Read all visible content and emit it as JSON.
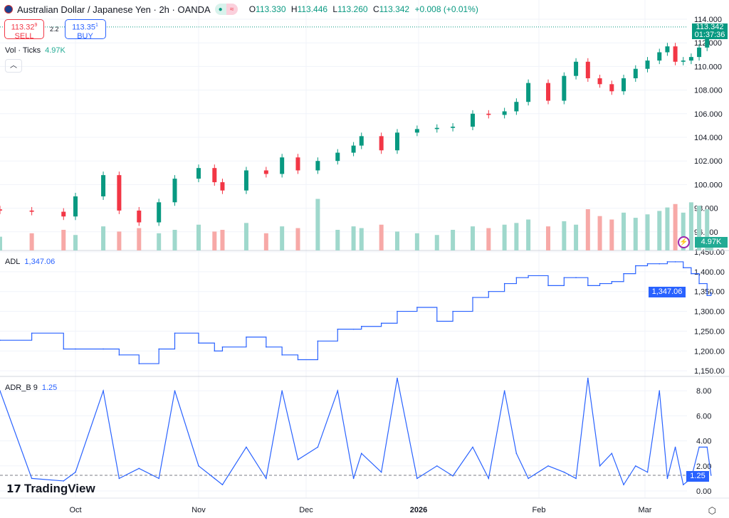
{
  "header": {
    "symbol": "Australian Dollar / Japanese Yen · 2h · OANDA",
    "open_label": "O",
    "open": "113.330",
    "high_label": "H",
    "high": "113.446",
    "low_label": "L",
    "low": "113.260",
    "close_label": "C",
    "close": "113.342",
    "change": "+0.008 (+0.01%)",
    "market_status_icon": "dot-icon",
    "delay_icon": "wave-icon"
  },
  "trade": {
    "sell_price": "113.32",
    "sell_sup": "9",
    "sell_label": "SELL",
    "spread": "2.2",
    "buy_price": "113.35",
    "buy_sup": "1",
    "buy_label": "BUY"
  },
  "volume_legend": {
    "label": "Vol · Ticks",
    "value": "4.97K"
  },
  "adl_legend": {
    "label": "ADL",
    "value": "1,347.06"
  },
  "adr_legend": {
    "label": "ADR_B 9",
    "value": "1.25"
  },
  "price_tag": {
    "price": "113.342",
    "countdown": "01:37:36"
  },
  "volume_tag": "4.97K",
  "adl_tag": "1,347.06",
  "adr_tag": "1.25",
  "brand": "TradingView",
  "colors": {
    "up": "#089981",
    "down": "#f23645",
    "line": "#2962ff"
  },
  "chart_data": [
    {
      "type": "candlestick",
      "title": "Australian Dollar / Japanese Yen · 2h · OANDA",
      "ylim": [
        95,
        115
      ],
      "yticks": [
        "114.000",
        "112.000",
        "110.000",
        "108.000",
        "106.000",
        "104.000",
        "102.000",
        "100.000",
        "98.000",
        "96.000"
      ],
      "x": [
        "2025-09-12",
        "2025-09-20",
        "2025-09-28",
        "2025-10-01",
        "2025-10-08",
        "2025-10-12",
        "2025-10-17",
        "2025-10-22",
        "2025-10-26",
        "2025-11-01",
        "2025-11-05",
        "2025-11-07",
        "2025-11-13",
        "2025-11-18",
        "2025-11-22",
        "2025-11-26",
        "2025-12-01",
        "2025-12-06",
        "2025-12-10",
        "2025-12-12",
        "2025-12-17",
        "2025-12-21",
        "2025-12-26",
        "2025-12-31",
        "2026-01-04",
        "2026-01-09",
        "2026-01-13",
        "2026-01-17",
        "2026-01-20",
        "2026-01-23",
        "2026-01-28",
        "2026-02-01",
        "2026-02-04",
        "2026-02-07",
        "2026-02-10",
        "2026-02-13",
        "2026-02-16",
        "2026-02-19",
        "2026-02-22",
        "2026-02-25",
        "2026-02-27",
        "2026-03-01",
        "2026-03-03",
        "2026-03-05",
        "2026-03-07",
        "2026-03-09",
        "2026-03-10"
      ],
      "close": [
        97.8,
        97.7,
        97.3,
        99.0,
        100.8,
        97.8,
        96.8,
        98.5,
        100.5,
        101.4,
        100.2,
        99.5,
        101.2,
        100.9,
        102.3,
        101.2,
        102.0,
        102.7,
        103.3,
        104.1,
        102.9,
        104.4,
        104.7,
        104.8,
        104.9,
        106.0,
        105.9,
        106.2,
        107.0,
        108.6,
        107.1,
        109.2,
        110.4,
        109.0,
        108.5,
        107.9,
        109.0,
        109.8,
        110.5,
        111.2,
        111.7,
        110.4,
        110.5,
        110.8,
        111.6,
        112.8,
        113.342
      ],
      "volume_k": [
        8,
        10,
        12,
        9,
        14,
        11,
        13,
        10,
        12,
        15,
        11,
        12,
        16,
        10,
        14,
        13,
        30,
        12,
        14,
        13,
        15,
        11,
        10,
        9,
        12,
        14,
        13,
        15,
        16,
        18,
        14,
        17,
        15,
        24,
        20,
        18,
        22,
        19,
        21,
        23,
        25,
        27,
        22,
        28,
        26,
        24,
        4.97
      ],
      "xticks": [
        "Oct",
        "Nov",
        "Dec",
        "2026",
        "Feb",
        "Mar"
      ]
    },
    {
      "type": "line",
      "series": [
        {
          "name": "ADL",
          "values": [
            1227,
            1245,
            1205,
            1205,
            1205,
            1190,
            1168,
            1205,
            1245,
            1220,
            1200,
            1210,
            1235,
            1210,
            1190,
            1178,
            1225,
            1255,
            1255,
            1262,
            1270,
            1300,
            1310,
            1275,
            1300,
            1335,
            1350,
            1370,
            1385,
            1390,
            1365,
            1385,
            1385,
            1365,
            1370,
            1375,
            1395,
            1415,
            1420,
            1420,
            1425,
            1425,
            1410,
            1395,
            1370,
            1340,
            1347.06
          ]
        }
      ],
      "ylim": [
        1140,
        1460
      ],
      "yticks": [
        "1,450.00",
        "1,400.00",
        "1,350.00",
        "1,300.00",
        "1,250.00",
        "1,200.00",
        "1,150.00"
      ]
    },
    {
      "type": "line",
      "series": [
        {
          "name": "ADR_B 9",
          "values": [
            8,
            1,
            0.8,
            1.5,
            8,
            1,
            1.8,
            1,
            8,
            2,
            1,
            0.5,
            3.5,
            1,
            8,
            2.5,
            3.5,
            8,
            1,
            3,
            1.5,
            9,
            1,
            2,
            1.2,
            3.5,
            1,
            8,
            3,
            1,
            2,
            1.5,
            1,
            9,
            2,
            3,
            0.5,
            2,
            1.5,
            8,
            1,
            3.5,
            0.5,
            1,
            3.5,
            3.5,
            1.25
          ]
        }
      ],
      "ylim": [
        -0.5,
        9.1
      ],
      "yticks": [
        "8.00",
        "6.00",
        "4.00",
        "2.00",
        "0.00"
      ]
    }
  ]
}
